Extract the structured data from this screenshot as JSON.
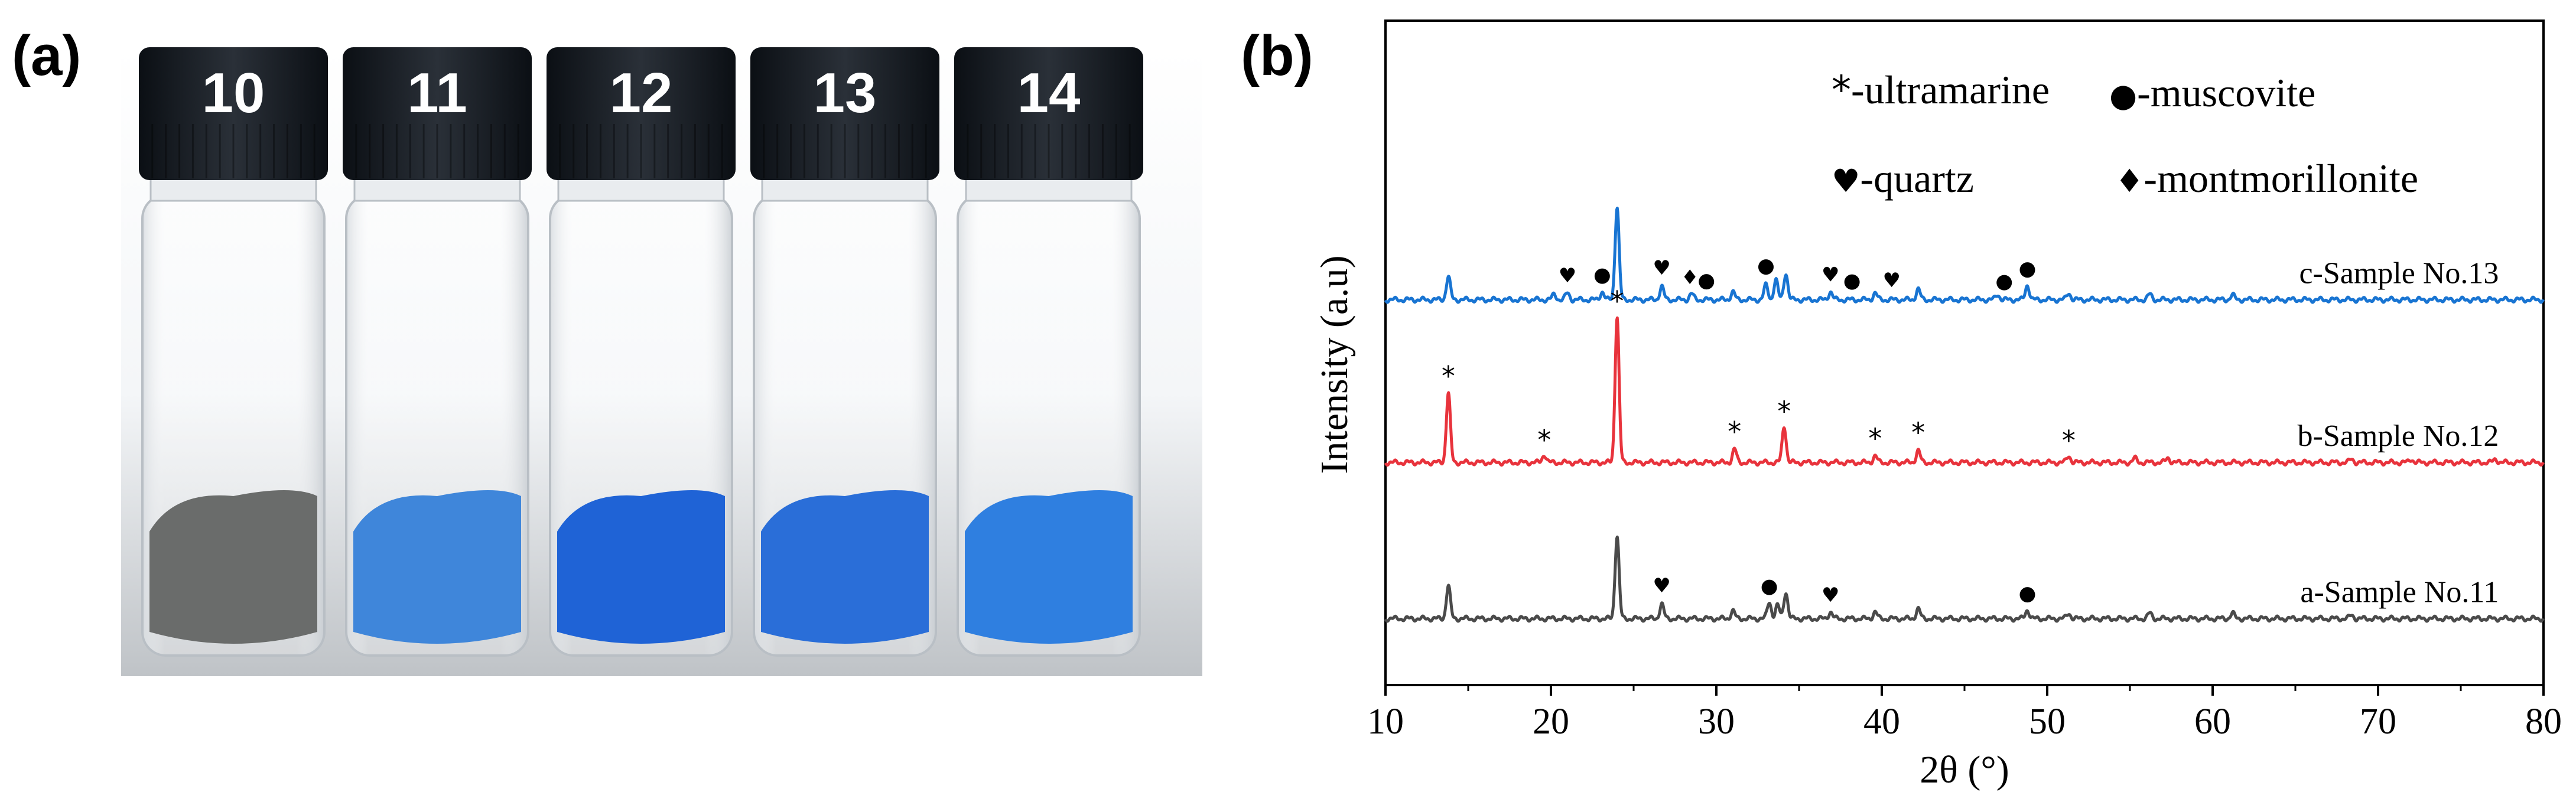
{
  "panel_a": {
    "label": "(a)",
    "vials": [
      {
        "number": "10",
        "powder_color": "#6a6c6b"
      },
      {
        "number": "11",
        "powder_color": "#3f86da"
      },
      {
        "number": "12",
        "powder_color": "#1f63d6"
      },
      {
        "number": "13",
        "powder_color": "#2a6ed8"
      },
      {
        "number": "14",
        "powder_color": "#2f7fe0"
      }
    ]
  },
  "panel_b": {
    "label": "(b)"
  },
  "chart_data": {
    "type": "line",
    "title": "",
    "xlabel": "2θ (°)",
    "ylabel": "Intensity (a.u)",
    "xlim": [
      10,
      80
    ],
    "xticks": [
      10,
      20,
      30,
      40,
      50,
      60,
      70,
      80
    ],
    "legend": [
      {
        "symbol": "*",
        "text": "-ultramarine"
      },
      {
        "symbol": "●",
        "text": "-muscovite"
      },
      {
        "symbol": "♥",
        "text": "-quartz"
      },
      {
        "symbol": "♦",
        "text": "-montmorillonite"
      }
    ],
    "series": [
      {
        "name": "c-Sample No.13",
        "color": "#1874d2",
        "baseline": 0.58,
        "peaks": [
          {
            "x": 13.8,
            "h": 0.035
          },
          {
            "x": 20.2,
            "h": 0.008
          },
          {
            "x": 21.0,
            "h": 0.01
          },
          {
            "x": 23.1,
            "h": 0.012
          },
          {
            "x": 24.0,
            "h": 0.14
          },
          {
            "x": 26.7,
            "h": 0.02
          },
          {
            "x": 28.5,
            "h": 0.009
          },
          {
            "x": 31.0,
            "h": 0.012
          },
          {
            "x": 33.0,
            "h": 0.022
          },
          {
            "x": 33.6,
            "h": 0.03
          },
          {
            "x": 34.2,
            "h": 0.04
          },
          {
            "x": 36.9,
            "h": 0.012
          },
          {
            "x": 39.6,
            "h": 0.01
          },
          {
            "x": 42.2,
            "h": 0.016
          },
          {
            "x": 47.0,
            "h": 0.008
          },
          {
            "x": 48.8,
            "h": 0.022
          },
          {
            "x": 51.3,
            "h": 0.01
          },
          {
            "x": 56.2,
            "h": 0.008
          },
          {
            "x": 61.2,
            "h": 0.007
          }
        ]
      },
      {
        "name": "b-Sample No.12",
        "color": "#e8333c",
        "baseline": 0.335,
        "peaks": [
          {
            "x": 13.8,
            "h": 0.105
          },
          {
            "x": 19.6,
            "h": 0.012
          },
          {
            "x": 24.0,
            "h": 0.22
          },
          {
            "x": 31.1,
            "h": 0.02
          },
          {
            "x": 34.1,
            "h": 0.055
          },
          {
            "x": 39.6,
            "h": 0.01
          },
          {
            "x": 42.2,
            "h": 0.018
          },
          {
            "x": 51.3,
            "h": 0.01
          },
          {
            "x": 55.3,
            "h": 0.006
          },
          {
            "x": 57.3,
            "h": 0.007
          },
          {
            "x": 68.4,
            "h": 0.005
          },
          {
            "x": 72.0,
            "h": 0.005
          },
          {
            "x": 77.1,
            "h": 0.005
          }
        ]
      },
      {
        "name": "a-Sample No.11",
        "color": "#4a4a4a",
        "baseline": 0.1,
        "peaks": [
          {
            "x": 13.8,
            "h": 0.05
          },
          {
            "x": 24.0,
            "h": 0.125
          },
          {
            "x": 26.7,
            "h": 0.022
          },
          {
            "x": 31.0,
            "h": 0.012
          },
          {
            "x": 33.2,
            "h": 0.025
          },
          {
            "x": 33.7,
            "h": 0.02
          },
          {
            "x": 34.2,
            "h": 0.04
          },
          {
            "x": 36.9,
            "h": 0.01
          },
          {
            "x": 39.6,
            "h": 0.01
          },
          {
            "x": 42.2,
            "h": 0.015
          },
          {
            "x": 48.8,
            "h": 0.013
          },
          {
            "x": 51.3,
            "h": 0.008
          },
          {
            "x": 56.2,
            "h": 0.008
          },
          {
            "x": 61.2,
            "h": 0.008
          },
          {
            "x": 68.4,
            "h": 0.005
          }
        ]
      }
    ],
    "markers": [
      {
        "series": "c-Sample No.13",
        "symbol": "♥",
        "x": 21.0
      },
      {
        "series": "c-Sample No.13",
        "symbol": "●",
        "x": 23.1
      },
      {
        "series": "c-Sample No.13",
        "symbol": "♥",
        "x": 26.7
      },
      {
        "series": "c-Sample No.13",
        "symbol": "♦",
        "x": 28.4
      },
      {
        "series": "c-Sample No.13",
        "symbol": "●",
        "x": 29.4
      },
      {
        "series": "c-Sample No.13",
        "symbol": "●",
        "x": 33.0
      },
      {
        "series": "c-Sample No.13",
        "symbol": "♥",
        "x": 36.9
      },
      {
        "series": "c-Sample No.13",
        "symbol": "●",
        "x": 38.2
      },
      {
        "series": "c-Sample No.13",
        "symbol": "♥",
        "x": 40.6
      },
      {
        "series": "c-Sample No.13",
        "symbol": "●",
        "x": 47.4
      },
      {
        "series": "c-Sample No.13",
        "symbol": "●",
        "x": 48.8
      },
      {
        "series": "b-Sample No.12",
        "symbol": "*",
        "x": 13.8
      },
      {
        "series": "b-Sample No.12",
        "symbol": "*",
        "x": 19.6
      },
      {
        "series": "b-Sample No.12",
        "symbol": "*",
        "x": 24.0
      },
      {
        "series": "b-Sample No.12",
        "symbol": "*",
        "x": 31.1
      },
      {
        "series": "b-Sample No.12",
        "symbol": "*",
        "x": 34.1
      },
      {
        "series": "b-Sample No.12",
        "symbol": "*",
        "x": 39.6
      },
      {
        "series": "b-Sample No.12",
        "symbol": "*",
        "x": 42.2
      },
      {
        "series": "b-Sample No.12",
        "symbol": "*",
        "x": 51.3
      },
      {
        "series": "a-Sample No.11",
        "symbol": "♥",
        "x": 26.7
      },
      {
        "series": "a-Sample No.11",
        "symbol": "●",
        "x": 33.2
      },
      {
        "series": "a-Sample No.11",
        "symbol": "♥",
        "x": 36.9
      },
      {
        "series": "a-Sample No.11",
        "symbol": "●",
        "x": 48.8
      }
    ]
  }
}
